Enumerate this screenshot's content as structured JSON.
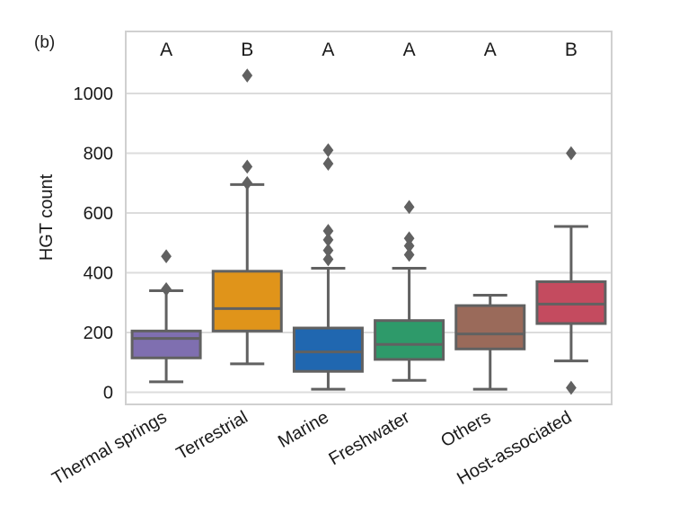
{
  "chart_data": {
    "type": "box",
    "panel_label": "(b)",
    "title": "",
    "xlabel": "",
    "ylabel": "HGT count",
    "ylim": [
      -45,
      1210
    ],
    "yticks": [
      0,
      200,
      400,
      600,
      800,
      1000
    ],
    "ytick_labels": [
      "0",
      "200",
      "400",
      "600",
      "800",
      "1000"
    ],
    "grid": "horizontal",
    "categories": [
      "Thermal springs",
      "Terrestrial",
      "Marine",
      "Freshwater",
      "Others",
      "Host-associated"
    ],
    "significance_letters": [
      "A",
      "B",
      "A",
      "A",
      "A",
      "B"
    ],
    "colors": [
      "#7f6fb0",
      "#e0941a",
      "#2067b0",
      "#2e9a6a",
      "#9a6a5a",
      "#c44b5f"
    ],
    "boxes": [
      {
        "name": "Thermal springs",
        "whisker_low": 35,
        "q1": 115,
        "median": 180,
        "q3": 205,
        "whisker_high": 340,
        "outliers": [
          455,
          345
        ]
      },
      {
        "name": "Terrestrial",
        "whisker_low": 95,
        "q1": 205,
        "median": 280,
        "q3": 405,
        "whisker_high": 695,
        "outliers": [
          1060,
          755,
          700
        ]
      },
      {
        "name": "Marine",
        "whisker_low": 10,
        "q1": 70,
        "median": 135,
        "q3": 215,
        "whisker_high": 415,
        "outliers": [
          810,
          765,
          540,
          510,
          475,
          445
        ]
      },
      {
        "name": "Freshwater",
        "whisker_low": 40,
        "q1": 110,
        "median": 160,
        "q3": 240,
        "whisker_high": 415,
        "outliers": [
          620,
          515,
          490,
          460
        ]
      },
      {
        "name": "Others",
        "whisker_low": 10,
        "q1": 145,
        "median": 195,
        "q3": 290,
        "whisker_high": 325,
        "outliers": []
      },
      {
        "name": "Host-associated",
        "whisker_low": 105,
        "q1": 230,
        "median": 295,
        "q3": 370,
        "whisker_high": 555,
        "outliers": [
          800,
          15
        ]
      }
    ]
  },
  "style": {
    "line_color": "#616161",
    "grid_color": "#dcdcdc",
    "frame_color": "#d0d0d0",
    "text_color": "#1a1a1a"
  }
}
